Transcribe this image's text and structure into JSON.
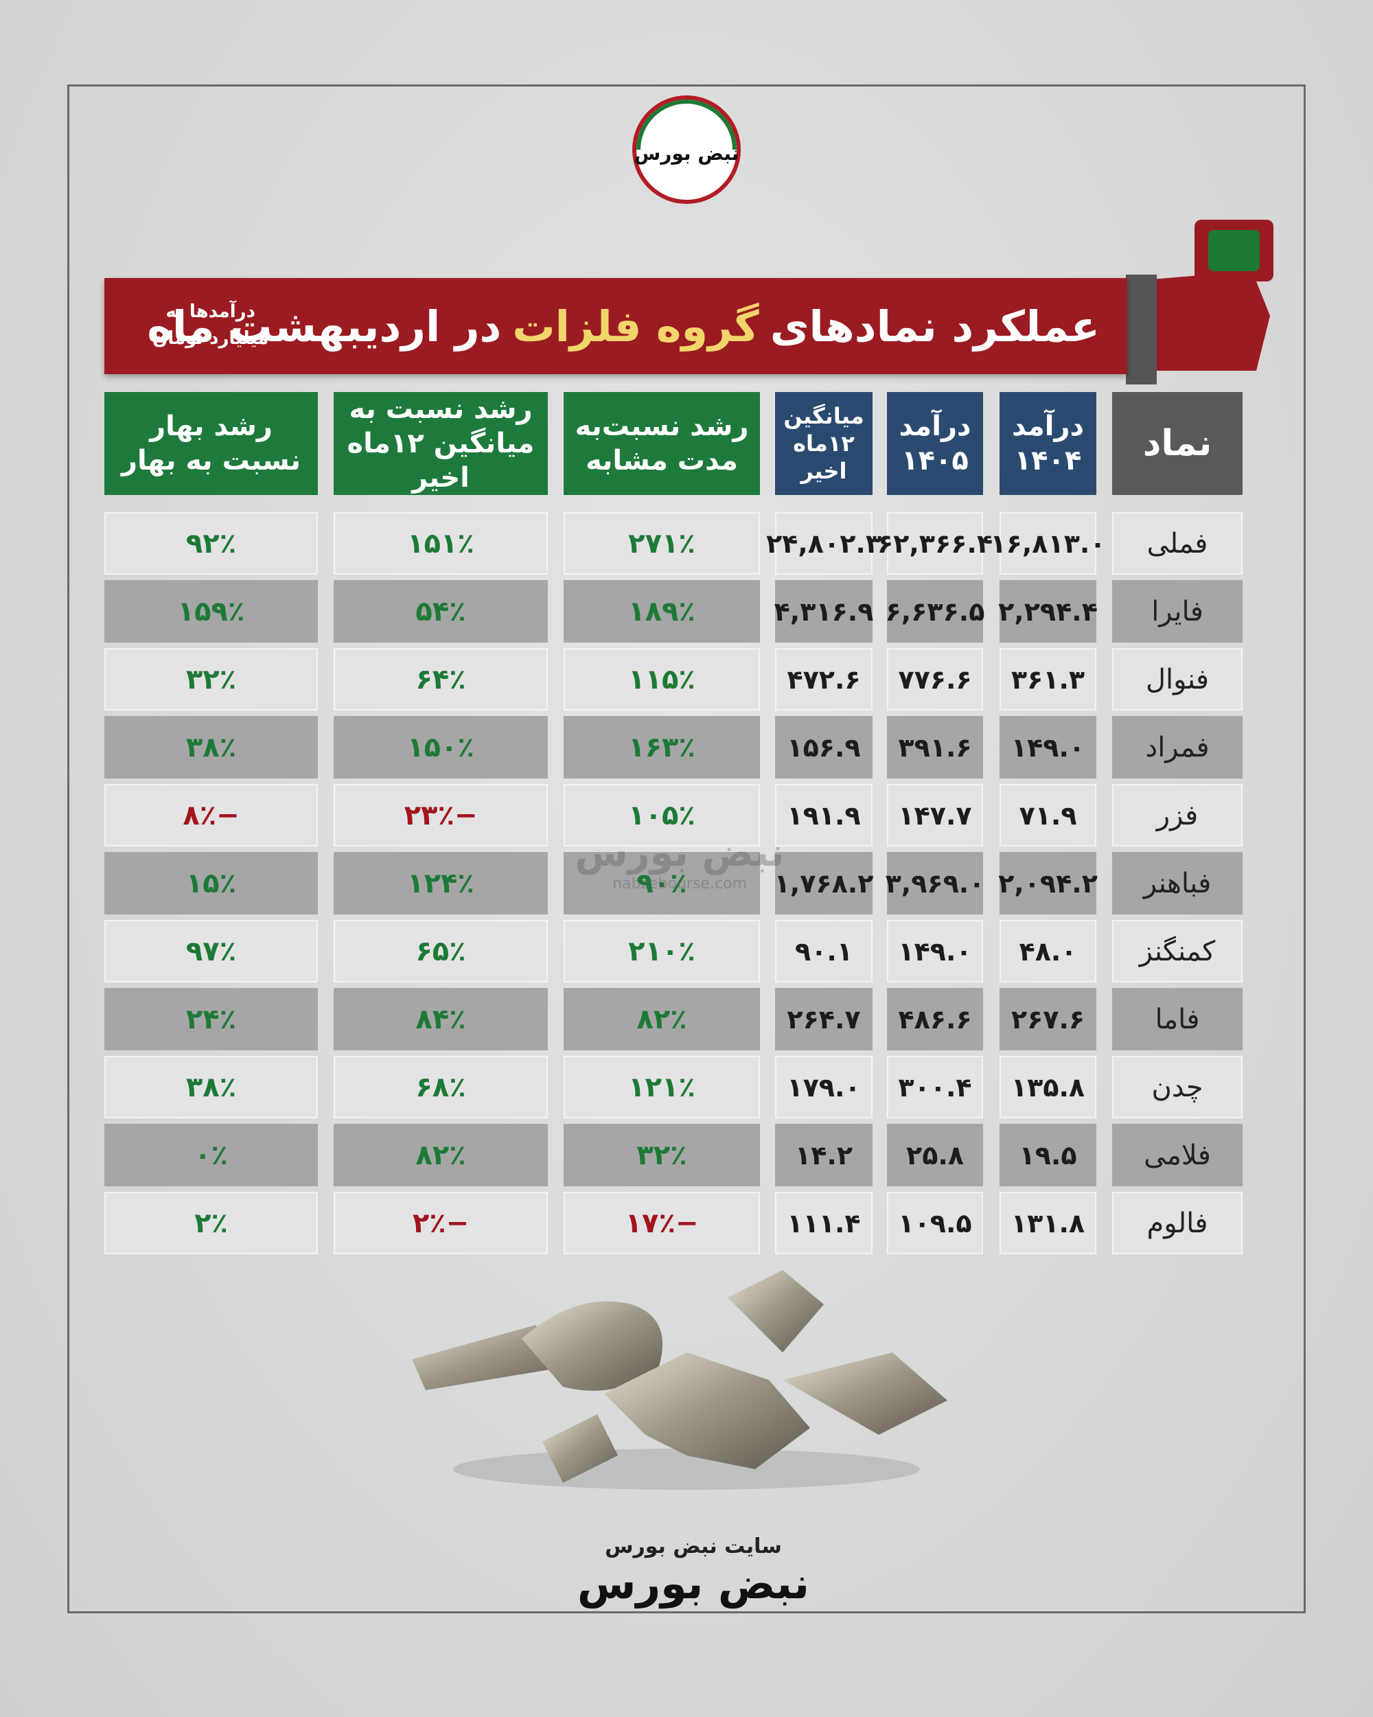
{
  "logo": {
    "text": "نبض بورس"
  },
  "header": {
    "title_before": "عملکرد نمادهای",
    "title_highlight": "گروه فلزات",
    "title_after": "در اردیبهشت ماه",
    "note_lines": [
      "درآمدها به",
      "میلیارد تومان"
    ]
  },
  "table": {
    "headers": [
      [
        "نماد"
      ],
      [
        "درآمد",
        "۱۴۰۴"
      ],
      [
        "درآمد",
        "۱۴۰۵"
      ],
      [
        "میانگین",
        "۱۲ماه اخیر"
      ],
      [
        "رشد نسبت‌به",
        "مدت مشابه"
      ],
      [
        "رشد نسبت به",
        "میانگین ۱۲ماه اخیر"
      ],
      [
        "رشد  بهار",
        "نسبت به بهار"
      ]
    ],
    "rows": [
      [
        "فملی",
        "۱۶,۸۱۳.۰",
        "۶۲,۳۶۶.۴",
        "۲۴,۸۰۲.۳",
        "۲۷۱٪",
        "۱۵۱٪",
        "۹۲٪"
      ],
      [
        "فایرا",
        "۲,۲۹۴.۴",
        "۶,۶۳۶.۵",
        "۴,۳۱۶.۹",
        "۱۸۹٪",
        "۵۴٪",
        "۱۵۹٪"
      ],
      [
        "فنوال",
        "۳۶۱.۳",
        "۷۷۶.۶",
        "۴۷۲.۶",
        "۱۱۵٪",
        "۶۴٪",
        "۳۲٪"
      ],
      [
        "فمراد",
        "۱۴۹.۰",
        "۳۹۱.۶",
        "۱۵۶.۹",
        "۱۶۳٪",
        "۱۵۰٪",
        "۳۸٪"
      ],
      [
        "فزر",
        "۷۱.۹",
        "۱۴۷.۷",
        "۱۹۱.۹",
        "۱۰۵٪",
        "−۲۳٪",
        "−۸٪"
      ],
      [
        "فباهنر",
        "۲,۰۹۴.۲",
        "۳,۹۶۹.۰",
        "۱,۷۶۸.۲",
        "۹۰٪",
        "۱۲۴٪",
        "۱۵٪"
      ],
      [
        "کمنگنز",
        "۴۸.۰",
        "۱۴۹.۰",
        "۹۰.۱",
        "۲۱۰٪",
        "۶۵٪",
        "۹۷٪"
      ],
      [
        "فاما",
        "۲۶۷.۶",
        "۴۸۶.۶",
        "۲۶۴.۷",
        "۸۲٪",
        "۸۴٪",
        "۲۴٪"
      ],
      [
        "چدن",
        "۱۳۵.۸",
        "۳۰۰.۴",
        "۱۷۹.۰",
        "۱۲۱٪",
        "۶۸٪",
        "۳۸٪"
      ],
      [
        "فلامی",
        "۱۹.۵",
        "۲۵.۸",
        "۱۴.۲",
        "۳۲٪",
        "۸۲٪",
        "۰٪"
      ],
      [
        "فالوم",
        "۱۳۱.۸",
        "۱۰۹.۵",
        "۱۱۱.۴",
        "−۱۷٪",
        "−۲٪",
        "۲٪"
      ]
    ]
  },
  "watermark": {
    "text": "نبض بورس",
    "url": "nabzebourse.com"
  },
  "footer": {
    "site": "سایت نبض بورس",
    "logo": "نبض بورس"
  }
}
